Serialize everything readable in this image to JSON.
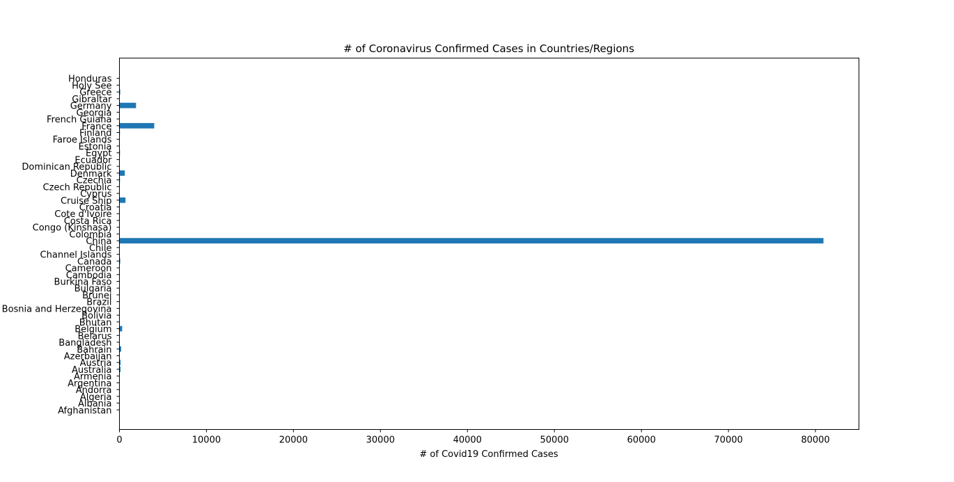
{
  "chart_data": {
    "type": "bar",
    "orientation": "horizontal",
    "title": "# of Coronavirus Confirmed Cases in Countries/Regions",
    "xlabel": "# of Covid19 Confirmed Cases",
    "ylabel": "",
    "xlim": [
      0,
      85000
    ],
    "xticks": [
      0,
      10000,
      20000,
      30000,
      40000,
      50000,
      60000,
      70000,
      80000
    ],
    "grid": false,
    "bar_color": "#1f77b4",
    "categories": [
      "Afghanistan",
      "Albania",
      "Algeria",
      "Andorra",
      "Argentina",
      "Armenia",
      "Australia",
      "Austria",
      "Azerbaijan",
      "Bahrain",
      "Bangladesh",
      "Belarus",
      "Belgium",
      "Bhutan",
      "Bolivia",
      "Bosnia and Herzegovina",
      "Brazil",
      "Brunei",
      "Bulgaria",
      "Burkina Faso",
      "Cambodia",
      "Cameroon",
      "Canada",
      "Channel Islands",
      "Chile",
      "China",
      "Colombia",
      "Congo (Kinshasa)",
      "Costa Rica",
      "Cote d'Ivoire",
      "Croatia",
      "Cruise Ship",
      "Cyprus",
      "Czech Republic",
      "Czechia",
      "Denmark",
      "Dominican Republic",
      "Ecuador",
      "Egypt",
      "Estonia",
      "Faroe Islands",
      "Finland",
      "France",
      "French Guiana",
      "Georgia",
      "Germany",
      "Gibraltar",
      "Greece",
      "Holy See",
      "Honduras"
    ],
    "values": [
      5,
      2,
      25,
      1,
      19,
      1,
      128,
      131,
      11,
      195,
      3,
      9,
      314,
      1,
      2,
      5,
      31,
      11,
      4,
      2,
      3,
      2,
      93,
      2,
      13,
      80921,
      9,
      1,
      13,
      1,
      12,
      696,
      2,
      1,
      63,
      615,
      5,
      17,
      67,
      17,
      2,
      59,
      4000,
      5,
      15,
      1908,
      1,
      90,
      1,
      2
    ]
  }
}
